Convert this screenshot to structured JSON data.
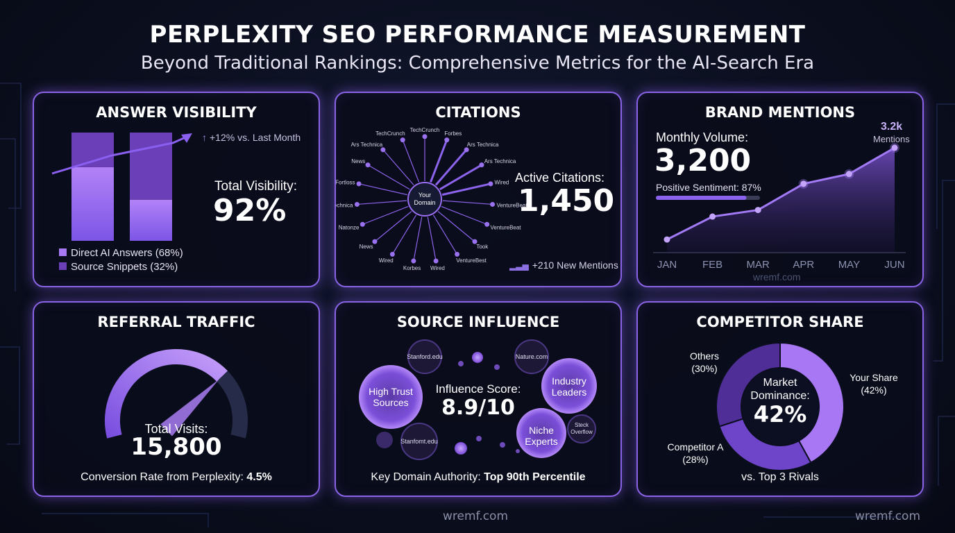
{
  "header": {
    "title": "PERPLEXITY SEO PERFORMANCE MEASUREMENT",
    "subtitle": "Beyond Traditional Rankings: Comprehensive Metrics for the AI-Search Era"
  },
  "answer_visibility": {
    "title": "ANSWER VISIBILITY",
    "trend_label": "+12% vs. Last Month",
    "total_label": "Total Visibility:",
    "total_value": "92%",
    "legend": [
      "Direct AI Answers (68%)",
      "Source Snippets (32%)"
    ],
    "colors": {
      "direct": "#a779f2",
      "snippets": "#6a3fb8"
    }
  },
  "citations": {
    "title": "CITATIONS",
    "center_label": "Your Domain",
    "sources": [
      "TechCrunch",
      "Forbes",
      "Ars Technica",
      "Ars Technica",
      "Wired",
      "VentureBeat",
      "VentureBeat",
      "Took",
      "VentureBest",
      "Wired",
      "Korbes",
      "Wired",
      "News",
      "Natonze",
      "Ars Technica",
      "Fortloss",
      "News",
      "Ars Technica",
      "TechCrunch"
    ],
    "active_label": "Active Citations:",
    "active_value": "1,450",
    "new_mentions": "+210 New Mentions"
  },
  "brand_mentions": {
    "title": "BRAND MENTIONS",
    "volume_label": "Monthly Volume:",
    "volume_value": "3,200",
    "sentiment_label": "Positive Sentiment: 87%",
    "sentiment": 0.87,
    "peak_value": "3.2k",
    "peak_label": "Mentions",
    "watermark": "wremf.com"
  },
  "referral_traffic": {
    "title": "REFERRAL TRAFFIC",
    "visits_label": "Total Visits:",
    "visits_value": "15,800",
    "conversion_label": "Conversion Rate from Perplexity:",
    "conversion_value": "4.5%",
    "gauge_fill": 0.72
  },
  "source_influence": {
    "title": "SOURCE INFLUENCE",
    "score_label": "Influence Score:",
    "score_value": "8.9/10",
    "bubbles": [
      "High Trust Sources",
      "Industry Leaders",
      "Niche Experts",
      "Stanford.edu",
      "Nature.com",
      "Stanfomt.edu",
      "Steck Overflow"
    ],
    "authority_label": "Key Domain Authority:",
    "authority_value": "Top 90th Percentile"
  },
  "competitor_share": {
    "title": "COMPETITOR SHARE",
    "center_label_1": "Market",
    "center_label_2": "Dominance:",
    "center_value": "42%",
    "labels": {
      "yours_1": "Your Share",
      "yours_2": "(42%)",
      "others_1": "Others",
      "others_2": "(30%)",
      "compA_1": "Competitor A",
      "compA_2": "(28%)"
    },
    "footer": "vs. Top 3 Rivals"
  },
  "footer": {
    "watermark_center": "wremf.com",
    "watermark_right": "wremf.com"
  },
  "chart_data": [
    {
      "type": "bar",
      "title": "ANSWER VISIBILITY",
      "categories": [
        "",
        ""
      ],
      "series": [
        {
          "name": "Direct AI Answers (68%)",
          "values": [
            68,
            38
          ]
        },
        {
          "name": "Source Snippets (32%)",
          "values": [
            32,
            62
          ]
        }
      ],
      "ylim": [
        0,
        100
      ],
      "legend": "bottom-left"
    },
    {
      "type": "line",
      "title": "BRAND MENTIONS",
      "categories": [
        "JAN",
        "FEB",
        "MAR",
        "APR",
        "MAY",
        "JUN"
      ],
      "values": [
        400,
        1100,
        1300,
        2100,
        2400,
        3200
      ],
      "ylim": [
        0,
        3600
      ]
    },
    {
      "type": "pie",
      "title": "COMPETITOR SHARE",
      "categories": [
        "Your Share",
        "Competitor A",
        "Others"
      ],
      "values": [
        42,
        28,
        30
      ]
    }
  ]
}
